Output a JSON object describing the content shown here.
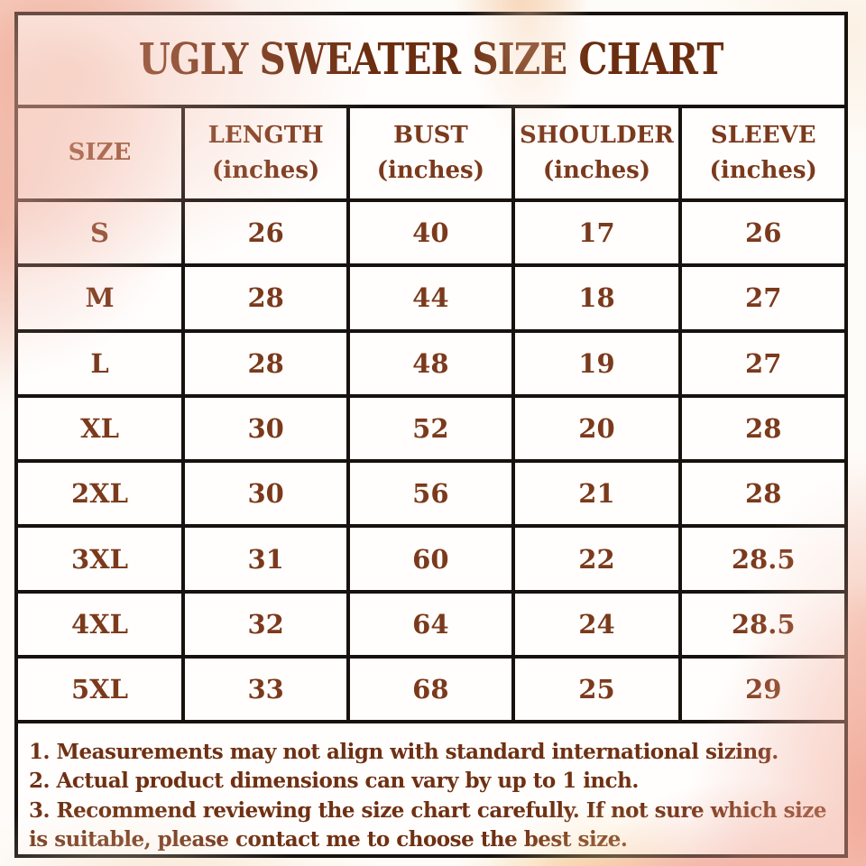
{
  "title": "UGLY SWEATER SIZE CHART",
  "table": {
    "headers": [
      {
        "label": "SIZE",
        "sub": ""
      },
      {
        "label": "LENGTH",
        "sub": "(inches)"
      },
      {
        "label": "BUST",
        "sub": "(inches)"
      },
      {
        "label": "SHOULDER",
        "sub": "(inches)"
      },
      {
        "label": "SLEEVE",
        "sub": "(inches)"
      }
    ],
    "rows": [
      {
        "size": "S",
        "length": "26",
        "bust": "40",
        "shoulder": "17",
        "sleeve": "26"
      },
      {
        "size": "M",
        "length": "28",
        "bust": "44",
        "shoulder": "18",
        "sleeve": "27"
      },
      {
        "size": "L",
        "length": "28",
        "bust": "48",
        "shoulder": "19",
        "sleeve": "27"
      },
      {
        "size": "XL",
        "length": "30",
        "bust": "52",
        "shoulder": "20",
        "sleeve": "28"
      },
      {
        "size": "2XL",
        "length": "30",
        "bust": "56",
        "shoulder": "21",
        "sleeve": "28"
      },
      {
        "size": "3XL",
        "length": "31",
        "bust": "60",
        "shoulder": "22",
        "sleeve": "28.5"
      },
      {
        "size": "4XL",
        "length": "32",
        "bust": "64",
        "shoulder": "24",
        "sleeve": "28.5"
      },
      {
        "size": "5XL",
        "length": "33",
        "bust": "68",
        "shoulder": "25",
        "sleeve": "29"
      }
    ]
  },
  "notes": [
    "1. Measurements may not align with standard international sizing.",
    "2. Actual product dimensions can vary by up to 1 inch.",
    "3. Recommend reviewing the size chart carefully. If not sure which size is suitable, please contact me to choose the best size."
  ],
  "colors": {
    "text_brown": "#7b3a1c",
    "title_brown": "#6b2d10",
    "notes_brown": "#6f3013",
    "border_black": "#17120e",
    "wash_pink": "#f0ae99",
    "wash_peach": "#f6cda4",
    "wash_gold": "#f5d7a2",
    "cell_white": "#fffefd"
  }
}
